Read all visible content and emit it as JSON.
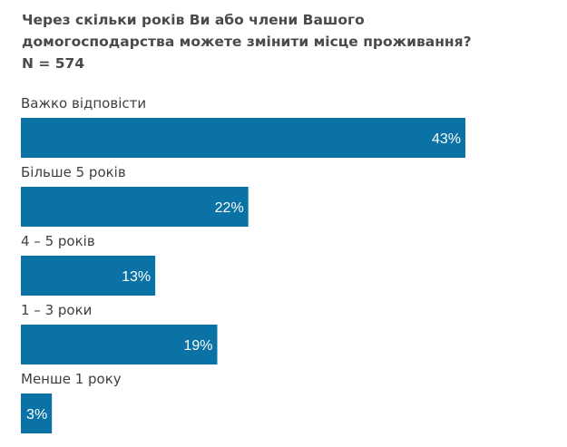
{
  "title_lines": [
    "Через скільки років Ви або члени Вашого",
    "домогосподарства можете змінити місце проживання?",
    "N = 574"
  ],
  "colors": {
    "bar": "#0a72a5",
    "title": "#4a4a4a",
    "category_label": "#3f3f3f",
    "value_label": "#ffffff"
  },
  "chart_data": {
    "type": "bar",
    "orientation": "horizontal",
    "title": "Через скільки років Ви або члени Вашого домогосподарства можете змінити місце проживання?",
    "subtitle": "N = 574",
    "categories": [
      "Важко відповісти",
      "Більше 5 років",
      "4 – 5 років",
      "1 – 3 роки",
      "Менше 1 року"
    ],
    "values": [
      43,
      22,
      13,
      19,
      3
    ],
    "value_labels": [
      "43%",
      "22%",
      "13%",
      "19%",
      "3%"
    ],
    "unit": "%",
    "xlim": [
      0,
      43
    ],
    "grid": false,
    "legend": "none"
  }
}
